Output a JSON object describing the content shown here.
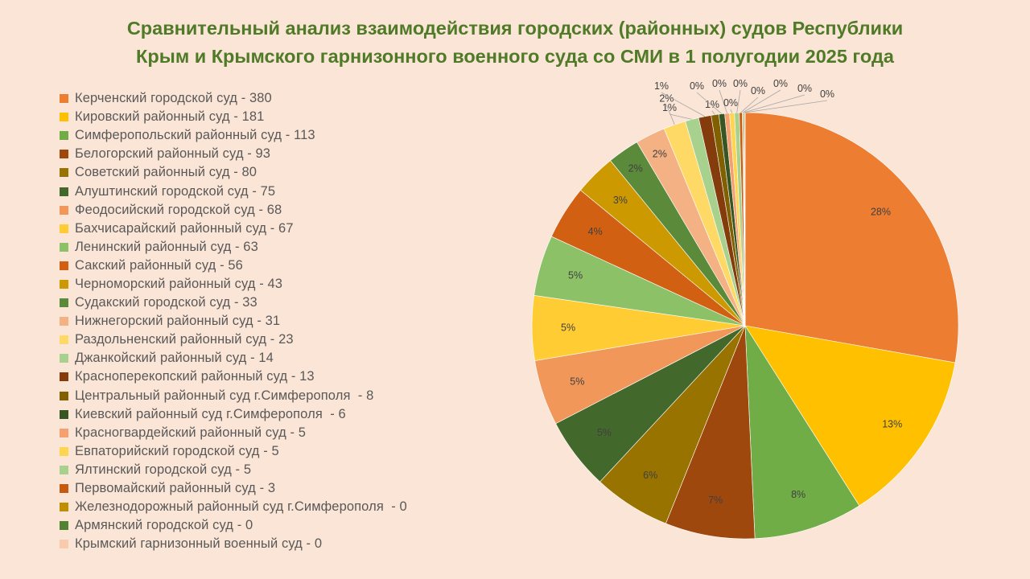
{
  "chart_data": {
    "type": "pie",
    "title": [
      "Сравнительный анализ взаимодействия городских (районных) судов Республики",
      "Крым и Крымского гарнизонного военного суда со СМИ в 1 полугодии 2025 года"
    ],
    "legend_position": "left",
    "slices": [
      {
        "label": "Керченский городской суд - 380",
        "value": 380,
        "pct_label": "28%",
        "color": "#ed7d31"
      },
      {
        "label": "Кировский районный суд - 181",
        "value": 181,
        "pct_label": "13%",
        "color": "#ffc000"
      },
      {
        "label": "Симферопольский районный суд - 113",
        "value": 113,
        "pct_label": "8%",
        "color": "#70ad47"
      },
      {
        "label": "Белогорский районный суд - 93",
        "value": 93,
        "pct_label": "7%",
        "color": "#9e480e"
      },
      {
        "label": "Советский районный суд - 80",
        "value": 80,
        "pct_label": "6%",
        "color": "#997300"
      },
      {
        "label": "Алуштинский городской суд - 75",
        "value": 75,
        "pct_label": "5%",
        "color": "#43682b"
      },
      {
        "label": "Феодосийский городской суд - 68",
        "value": 68,
        "pct_label": "5%",
        "color": "#f1975a"
      },
      {
        "label": "Бахчисарайский районный суд - 67",
        "value": 67,
        "pct_label": "5%",
        "color": "#ffcd33"
      },
      {
        "label": "Ленинский районный суд - 63",
        "value": 63,
        "pct_label": "5%",
        "color": "#8cc168"
      },
      {
        "label": "Сакский районный суд - 56",
        "value": 56,
        "pct_label": "4%",
        "color": "#d26012"
      },
      {
        "label": "Черноморский районный суд - 43",
        "value": 43,
        "pct_label": "3%",
        "color": "#cc9a00"
      },
      {
        "label": "Судакский городской суд - 33",
        "value": 33,
        "pct_label": "2%",
        "color": "#5a8a3a"
      },
      {
        "label": "Нижнегорский районный суд - 31",
        "value": 31,
        "pct_label": "2%",
        "color": "#f4b183"
      },
      {
        "label": "Раздольненский районный суд - 23",
        "value": 23,
        "pct_label": "2%",
        "color": "#ffd966"
      },
      {
        "label": "Джанкойский районный суд - 14",
        "value": 14,
        "pct_label": "1%",
        "color": "#a9d18e"
      },
      {
        "label": "Красноперекопский районный суд - 13",
        "value": 13,
        "pct_label": "1%",
        "color": "#843c0c"
      },
      {
        "label": "Центральный районный суд г.Симферополя  - 8",
        "value": 8,
        "pct_label": "1%",
        "color": "#806000"
      },
      {
        "label": "Киевский районный суд г.Симферополя  - 6",
        "value": 6,
        "pct_label": "0%",
        "color": "#375623"
      },
      {
        "label": "Красногвардейский районный суд - 5",
        "value": 5,
        "pct_label": "0%",
        "color": "#f4a070"
      },
      {
        "label": "Евпаторийский городской суд - 5",
        "value": 5,
        "pct_label": "0%",
        "color": "#ffd54f"
      },
      {
        "label": "Ялтинский городской суд - 5",
        "value": 5,
        "pct_label": "0%",
        "color": "#a9d18e"
      },
      {
        "label": "Первомайский районный суд - 3",
        "value": 3,
        "pct_label": "0%",
        "color": "#c55a11"
      },
      {
        "label": "Железнодорожный районный суд г.Симферополя  - 0",
        "value": 0,
        "pct_label": "0%",
        "color": "#bf8f00"
      },
      {
        "label": "Армянский городской суд - 0",
        "value": 0,
        "pct_label": "0%",
        "color": "#548235"
      },
      {
        "label": "Крымский гарнизонный военный суд - 0",
        "value": 0,
        "pct_label": "0%",
        "color": "#f8cbad"
      }
    ]
  }
}
